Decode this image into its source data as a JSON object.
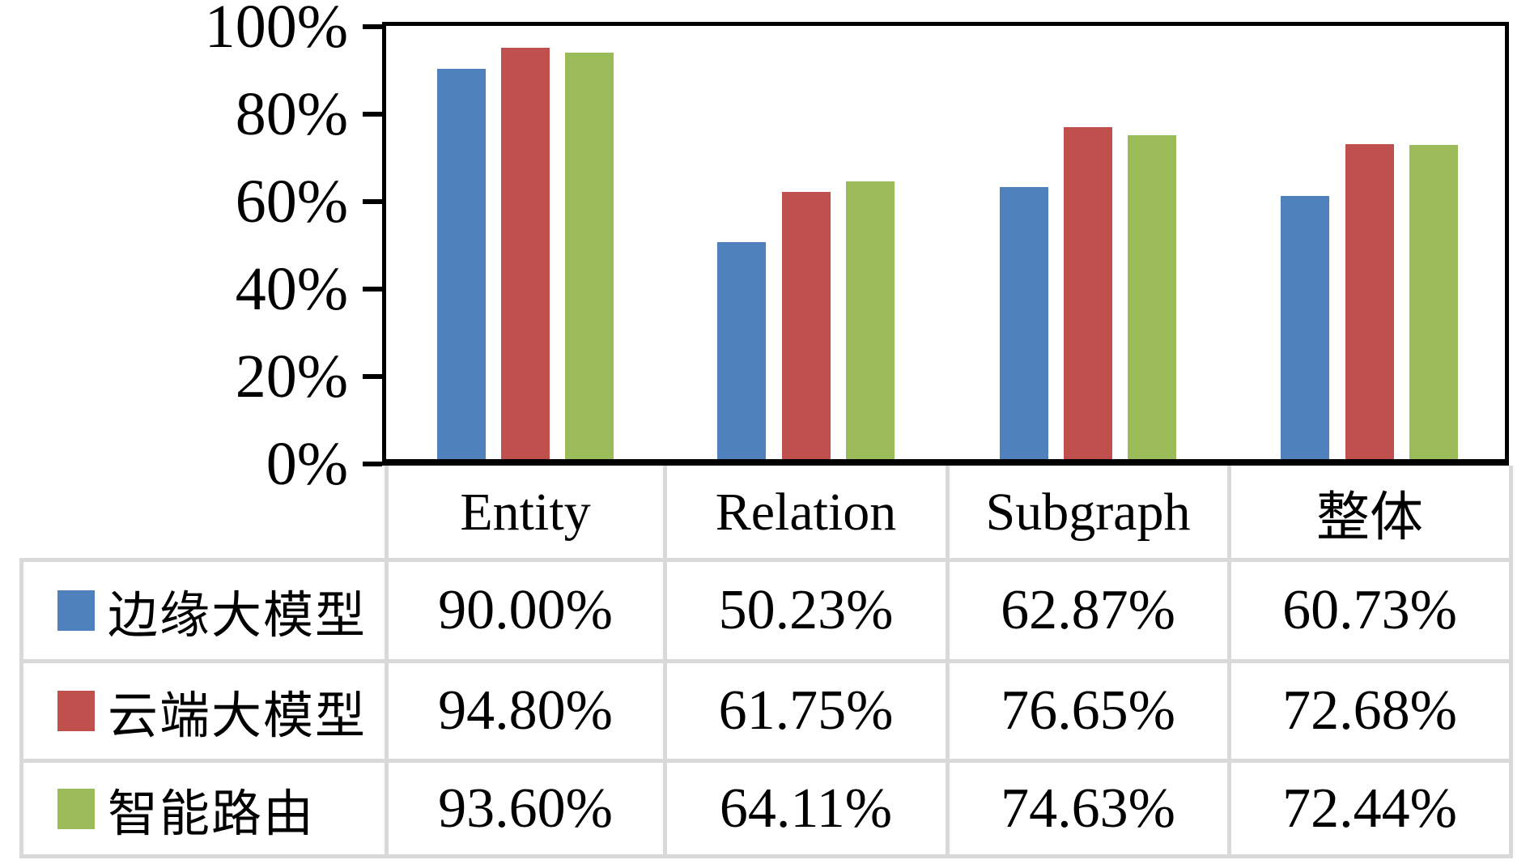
{
  "chart_data": {
    "type": "bar",
    "categories": [
      "Entity",
      "Relation",
      "Subgraph",
      "整体"
    ],
    "series": [
      {
        "name": "边缘大模型",
        "color": "#4F81BD",
        "values": [
          90.0,
          50.23,
          62.87,
          60.73
        ]
      },
      {
        "name": "云端大模型",
        "color": "#C0504D",
        "values": [
          94.8,
          61.75,
          76.65,
          72.68
        ]
      },
      {
        "name": "智能路由",
        "color": "#9BBB59",
        "values": [
          93.6,
          64.11,
          74.63,
          72.44
        ]
      }
    ],
    "title": "",
    "xlabel": "",
    "ylabel": "",
    "ylim": [
      0,
      100
    ],
    "y_ticks": [
      "0%",
      "20%",
      "40%",
      "60%",
      "80%",
      "100%"
    ],
    "grid": false,
    "legend_position": "table-below-left-column"
  },
  "table": {
    "columns": [
      "Entity",
      "Relation",
      "Subgraph",
      "整体"
    ],
    "rows": [
      {
        "label": "边缘大模型",
        "swatch": "#4F81BD",
        "values": [
          "90.00%",
          "50.23%",
          "62.87%",
          "60.73%"
        ]
      },
      {
        "label": "云端大模型",
        "swatch": "#C0504D",
        "values": [
          "94.80%",
          "61.75%",
          "76.65%",
          "72.68%"
        ]
      },
      {
        "label": "智能路由",
        "swatch": "#9BBB59",
        "values": [
          "93.60%",
          "64.11%",
          "74.63%",
          "72.44%"
        ]
      }
    ]
  },
  "colors": {
    "axis": "#000000",
    "grid_line": "#D9D9D9",
    "background": "#FFFFFF",
    "series_blue": "#4F81BD",
    "series_red": "#C0504D",
    "series_green": "#9BBB59"
  }
}
